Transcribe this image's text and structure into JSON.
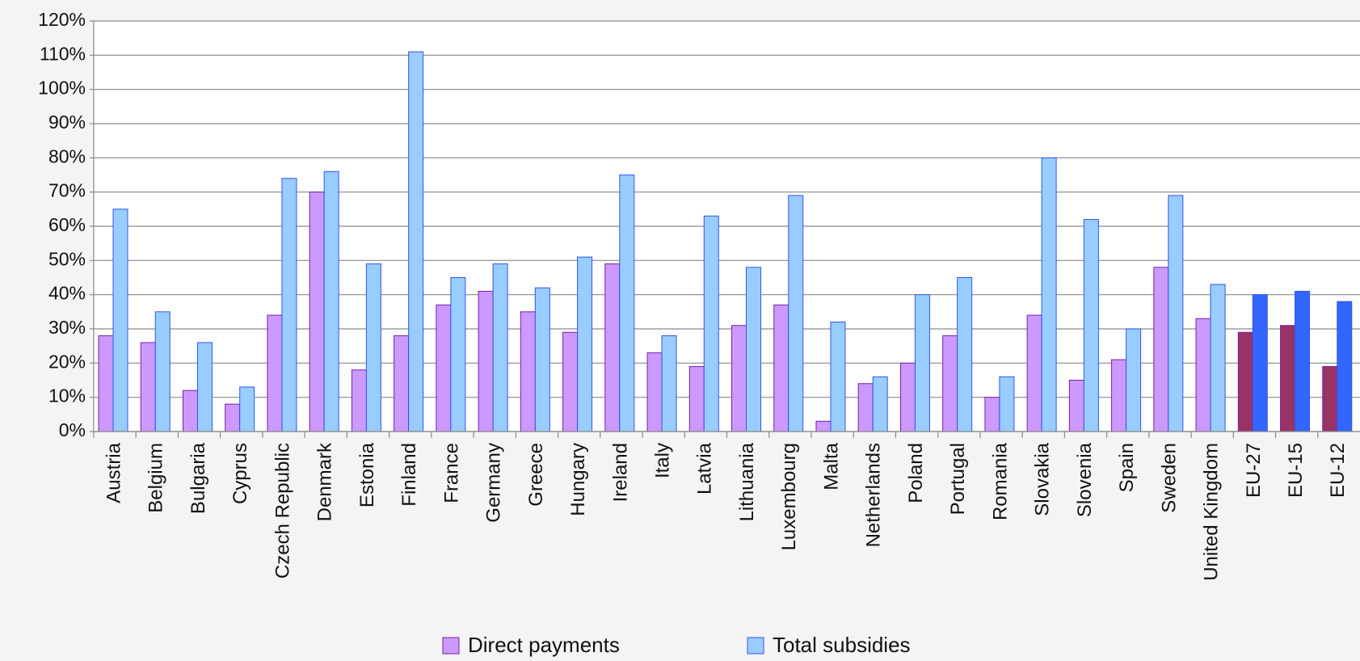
{
  "chart_data": {
    "type": "bar",
    "categories": [
      "Austria",
      "Belgium",
      "Bulgaria",
      "Cyprus",
      "Czech Republic",
      "Denmark",
      "Estonia",
      "Finland",
      "France",
      "Germany",
      "Greece",
      "Hungary",
      "Ireland",
      "Italy",
      "Latvia",
      "Lithuania",
      "Luxembourg",
      "Malta",
      "Netherlands",
      "Poland",
      "Portugal",
      "Romania",
      "Slovakia",
      "Slovenia",
      "Spain",
      "Sweden",
      "United Kingdom",
      "EU-27",
      "EU-15",
      "EU-12"
    ],
    "series": [
      {
        "name": "Direct payments",
        "color": "#cc99ff",
        "border": "#7a1fa2",
        "colors": [
          "#cc99ff",
          "#cc99ff",
          "#cc99ff",
          "#cc99ff",
          "#cc99ff",
          "#cc99ff",
          "#cc99ff",
          "#cc99ff",
          "#cc99ff",
          "#cc99ff",
          "#cc99ff",
          "#cc99ff",
          "#cc99ff",
          "#cc99ff",
          "#cc99ff",
          "#cc99ff",
          "#cc99ff",
          "#cc99ff",
          "#cc99ff",
          "#cc99ff",
          "#cc99ff",
          "#cc99ff",
          "#cc99ff",
          "#cc99ff",
          "#cc99ff",
          "#cc99ff",
          "#cc99ff",
          "#993366",
          "#993366",
          "#993366"
        ],
        "values": [
          28,
          26,
          12,
          8,
          34,
          70,
          18,
          28,
          37,
          41,
          35,
          29,
          49,
          23,
          19,
          31,
          37,
          3,
          14,
          20,
          28,
          10,
          34,
          15,
          21,
          48,
          33,
          29,
          31,
          19
        ]
      },
      {
        "name": "Total subsidies",
        "color": "#99ccff",
        "border": "#3355ee",
        "colors": [
          "#99ccff",
          "#99ccff",
          "#99ccff",
          "#99ccff",
          "#99ccff",
          "#99ccff",
          "#99ccff",
          "#99ccff",
          "#99ccff",
          "#99ccff",
          "#99ccff",
          "#99ccff",
          "#99ccff",
          "#99ccff",
          "#99ccff",
          "#99ccff",
          "#99ccff",
          "#99ccff",
          "#99ccff",
          "#99ccff",
          "#99ccff",
          "#99ccff",
          "#99ccff",
          "#99ccff",
          "#99ccff",
          "#99ccff",
          "#99ccff",
          "#3366ff",
          "#3366ff",
          "#3366ff"
        ],
        "values": [
          65,
          35,
          26,
          13,
          74,
          76,
          49,
          111,
          45,
          49,
          42,
          51,
          75,
          28,
          63,
          48,
          69,
          32,
          16,
          40,
          45,
          16,
          80,
          62,
          30,
          69,
          43,
          40,
          41,
          38
        ]
      }
    ],
    "ylim": [
      0,
      120
    ],
    "yticks": [
      {
        "value": 0,
        "label": "0%"
      },
      {
        "value": 10,
        "label": "10%"
      },
      {
        "value": 20,
        "label": "20%"
      },
      {
        "value": 30,
        "label": "30%"
      },
      {
        "value": 40,
        "label": "40%"
      },
      {
        "value": 50,
        "label": "50%"
      },
      {
        "value": 60,
        "label": "60%"
      },
      {
        "value": 70,
        "label": "70%"
      },
      {
        "value": 80,
        "label": "80%"
      },
      {
        "value": 90,
        "label": "90%"
      },
      {
        "value": 100,
        "label": "100%"
      },
      {
        "value": 110,
        "label": "110%"
      },
      {
        "value": 120,
        "label": "120%"
      }
    ],
    "grid": true,
    "legend": "bottom"
  }
}
